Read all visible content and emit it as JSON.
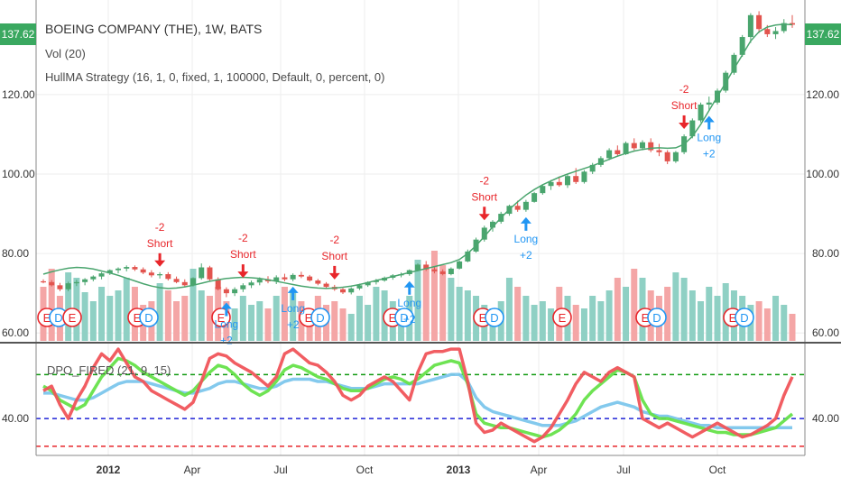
{
  "header": {
    "symbol_title": "BOEING COMPANY (THE), 1W, BATS",
    "volume_label": "Vol (20)",
    "strategy_label": "HullMA Strategy (16, 1, 0, fixed, 1, 100000, Default, 0, percent, 0)",
    "oscillator_label": "DPO_FIRED (21, 9, 15)"
  },
  "price_tag": "137.62",
  "colors": {
    "up": "#4aa56e",
    "down": "#e2544e",
    "hull": "#4aa56e",
    "vol_up": "#8fd0c4",
    "vol_down": "#f4a6a6",
    "short": "#e8262b",
    "long": "#2196f3",
    "osc_red": "#f0545a",
    "osc_green": "#66e24a",
    "osc_blue": "#7cc6ec",
    "level_green": "#119a11",
    "level_blue": "#1f23d6",
    "level_red": "#e8262b"
  },
  "chart_data": {
    "type": "candlestick",
    "price_axis": {
      "range": [
        58,
        142
      ],
      "ticks": [
        "60.00",
        "80.00",
        "100.00",
        "120.00"
      ]
    },
    "time_axis": {
      "labels": [
        "2012",
        "Apr",
        "Jul",
        "Oct",
        "2013",
        "Apr",
        "Jul",
        "Oct"
      ]
    },
    "candles": [
      [
        73,
        73.5,
        72.5,
        72.8
      ],
      [
        72.8,
        73.3,
        71.7,
        72
      ],
      [
        72,
        72.6,
        70.5,
        71
      ],
      [
        71,
        72.9,
        70.5,
        72.5
      ],
      [
        72.5,
        73.4,
        71.8,
        72.8
      ],
      [
        72.8,
        73.8,
        72,
        73.5
      ],
      [
        73.5,
        74.5,
        73,
        74.2
      ],
      [
        74.2,
        75.3,
        73.5,
        75
      ],
      [
        75,
        76,
        74.6,
        75.8
      ],
      [
        75.8,
        76.5,
        75,
        76.2
      ],
      [
        76.2,
        77,
        75.5,
        76.6
      ],
      [
        76.6,
        77,
        75.6,
        76
      ],
      [
        76,
        76.5,
        74.8,
        75.2
      ],
      [
        75.2,
        75.8,
        74,
        74.5
      ],
      [
        74.5,
        75.3,
        73.7,
        74.8
      ],
      [
        74.8,
        75.3,
        73.2,
        73.6
      ],
      [
        73.6,
        74.2,
        72.5,
        72.8
      ],
      [
        72.8,
        73.5,
        71.5,
        72
      ],
      [
        72,
        74,
        71.7,
        73.8
      ],
      [
        73.8,
        77.5,
        73.4,
        76.5
      ],
      [
        76.5,
        76.9,
        73,
        73.5
      ],
      [
        73.5,
        74,
        70.7,
        71
      ],
      [
        71,
        71.5,
        69,
        70
      ],
      [
        70,
        71.5,
        69.3,
        71
      ],
      [
        71,
        72.5,
        70.3,
        72
      ],
      [
        72,
        73.2,
        71.3,
        72.7
      ],
      [
        72.7,
        74,
        72,
        73.5
      ],
      [
        73.5,
        74.3,
        72.5,
        73
      ],
      [
        73,
        74.5,
        72.3,
        74
      ],
      [
        74,
        74.9,
        73,
        73.5
      ],
      [
        73.5,
        75,
        73,
        74.6
      ],
      [
        74.6,
        75.4,
        73.8,
        74.2
      ],
      [
        74.2,
        74.6,
        72.9,
        73.2
      ],
      [
        73.2,
        73.6,
        72,
        72.4
      ],
      [
        72.4,
        72.8,
        71.2,
        71.6
      ],
      [
        71.6,
        72.1,
        70.6,
        71
      ],
      [
        71,
        71.3,
        69.8,
        70.2
      ],
      [
        70.2,
        71.5,
        69.7,
        71.2
      ],
      [
        71.2,
        72.4,
        70.8,
        72
      ],
      [
        72,
        73,
        71.6,
        72.8
      ],
      [
        72.8,
        73.6,
        72.2,
        73.2
      ],
      [
        73.2,
        74.2,
        72.9,
        73.9
      ],
      [
        73.9,
        74.8,
        73.4,
        74.5
      ],
      [
        74.5,
        75.2,
        74,
        74.8
      ],
      [
        74.8,
        76,
        74.4,
        75.8
      ],
      [
        75.8,
        77.5,
        75.5,
        77.2
      ],
      [
        77.2,
        78.1,
        75.6,
        76
      ],
      [
        76,
        76.6,
        75,
        75.5
      ],
      [
        75.5,
        76,
        74.5,
        74.8
      ],
      [
        74.8,
        76.5,
        74.5,
        76.2
      ],
      [
        76.2,
        78.2,
        76,
        78
      ],
      [
        78,
        81,
        77.8,
        80.5
      ],
      [
        80.5,
        84,
        80.2,
        83.5
      ],
      [
        83.5,
        87,
        83,
        86.5
      ],
      [
        86.5,
        88.4,
        85.5,
        88
      ],
      [
        88,
        90.5,
        87.5,
        90
      ],
      [
        90,
        92.3,
        89.5,
        92
      ],
      [
        92,
        93.3,
        90.5,
        91
      ],
      [
        91,
        93.5,
        90.5,
        93
      ],
      [
        93,
        95.5,
        92.8,
        95.2
      ],
      [
        95.2,
        97.4,
        94.8,
        97
      ],
      [
        97,
        98.5,
        96,
        98
      ],
      [
        98,
        99.4,
        96.8,
        97.2
      ],
      [
        97.2,
        100,
        96.5,
        99.5
      ],
      [
        99.5,
        101.5,
        97.5,
        98
      ],
      [
        98,
        101,
        97.6,
        100.6
      ],
      [
        100.6,
        102.8,
        100,
        102.3
      ],
      [
        102.3,
        104.5,
        101.8,
        104
      ],
      [
        104,
        106.5,
        103.5,
        106
      ],
      [
        106,
        107.2,
        104.5,
        105
      ],
      [
        105,
        108.2,
        104.8,
        107.8
      ],
      [
        107.8,
        109,
        106,
        106.5
      ],
      [
        106.5,
        108.5,
        106,
        108
      ],
      [
        108,
        109,
        105.5,
        106
      ],
      [
        106,
        107.6,
        104.5,
        105.5
      ],
      [
        105.5,
        106,
        102.5,
        103.2
      ],
      [
        103.2,
        105.8,
        102.8,
        105.5
      ],
      [
        105.5,
        110,
        105,
        109.5
      ],
      [
        109.5,
        114,
        109,
        113.5
      ],
      [
        113.5,
        118,
        113,
        117.5
      ],
      [
        117.5,
        119.5,
        116,
        118
      ],
      [
        118,
        121.5,
        117.5,
        121
      ],
      [
        121,
        126,
        120.5,
        125.5
      ],
      [
        125.5,
        130.5,
        125,
        130
      ],
      [
        130,
        135,
        129.5,
        134.5
      ],
      [
        134.5,
        140.5,
        133,
        140
      ],
      [
        140,
        141,
        135.5,
        136.5
      ],
      [
        136.5,
        137.5,
        134.5,
        135.2
      ],
      [
        135.2,
        137,
        134,
        136
      ],
      [
        136,
        139,
        135.5,
        138
      ],
      [
        138,
        140,
        136.8,
        137.6
      ]
    ],
    "volume": [
      30,
      40,
      25,
      38,
      35,
      27,
      22,
      30,
      25,
      28,
      35,
      30,
      20,
      22,
      32,
      28,
      22,
      25,
      40,
      28,
      25,
      30,
      22,
      18,
      25,
      20,
      22,
      18,
      25,
      30,
      28,
      22,
      18,
      25,
      20,
      22,
      18,
      15,
      25,
      20,
      30,
      28,
      22,
      18,
      25,
      45,
      40,
      50,
      42,
      35,
      30,
      28,
      25,
      20,
      18,
      22,
      35,
      30,
      25,
      20,
      22,
      18,
      30,
      25,
      20,
      18,
      25,
      22,
      28,
      35,
      30,
      40,
      35,
      28,
      25,
      30,
      38,
      35,
      28,
      22,
      30,
      25,
      32,
      28,
      25,
      20,
      22,
      18,
      25,
      20,
      15
    ],
    "hull_ma": [
      74.8,
      75.4,
      75.9,
      76.3,
      76.5,
      76.4,
      76.1,
      75.6,
      75.1,
      74.5,
      73.8,
      73.1,
      72.4,
      71.8,
      71.4,
      71.2,
      71.3,
      71.6,
      72,
      72.5,
      73,
      73.4,
      73.7,
      73.9,
      74,
      73.9,
      73.7,
      73.4,
      73,
      72.6,
      72.2,
      71.8,
      71.5,
      71.3,
      71.2,
      71.3,
      71.5,
      71.8,
      72.2,
      72.7,
      73.2,
      73.7,
      74.2,
      74.7,
      75.2,
      75.7,
      76.2,
      76.7,
      77.2,
      77.7,
      78.5,
      80,
      82,
      84.3,
      86.7,
      89,
      91.1,
      93,
      94.7,
      96.1,
      97.3,
      98.3,
      99.2,
      100,
      100.7,
      101.4,
      102.1,
      102.9,
      103.7,
      104.5,
      105.2,
      105.8,
      106.2,
      106.5,
      106.6,
      106.5,
      106.6,
      107.5,
      109.5,
      112.5,
      116,
      119.5,
      123,
      126.5,
      130,
      133.5,
      135.8,
      137,
      137.5,
      137.7,
      137.6
    ],
    "signals": [
      {
        "type": "short",
        "qty": "-2",
        "label": "Short",
        "index": 14
      },
      {
        "type": "short",
        "qty": "-2",
        "label": "Short",
        "index": 24
      },
      {
        "type": "short",
        "qty": "-2",
        "label": "Short",
        "index": 35
      },
      {
        "type": "short",
        "qty": "-2",
        "label": "Short",
        "index": 53
      },
      {
        "type": "short",
        "qty": "-2",
        "label": "Short",
        "index": 77
      },
      {
        "type": "long",
        "qty": "+2",
        "label": "Long",
        "index": 80
      },
      {
        "type": "long",
        "qty": "+2",
        "label": "Long",
        "index": 22
      },
      {
        "type": "long",
        "qty": "+2",
        "label": "Long",
        "index": 30
      },
      {
        "type": "long",
        "qty": "+2",
        "label": "Long",
        "index": 44
      },
      {
        "type": "long",
        "qty": "+2",
        "label": "Long",
        "index": 58
      }
    ],
    "events": [
      {
        "x": 52,
        "letters": [
          "E",
          "D"
        ]
      },
      {
        "x": 80,
        "letters": [
          "E"
        ]
      },
      {
        "x": 152,
        "letters": [
          "E",
          "D"
        ]
      },
      {
        "x": 245,
        "letters": [
          "E"
        ]
      },
      {
        "x": 342,
        "letters": [
          "E",
          "D"
        ]
      },
      {
        "x": 435,
        "letters": [
          "E",
          "D"
        ]
      },
      {
        "x": 535,
        "letters": [
          "E",
          "D"
        ]
      },
      {
        "x": 623,
        "letters": [
          "E"
        ]
      },
      {
        "x": 715,
        "letters": [
          "E",
          "D"
        ]
      },
      {
        "x": 812,
        "letters": [
          "E",
          "D"
        ]
      }
    ],
    "oscillator": {
      "range": [
        26,
        72
      ],
      "levels": {
        "upper": 59,
        "middle": 40,
        "lower": 28
      },
      "tick": "40.00",
      "red": [
        52,
        54,
        46,
        40,
        48,
        54,
        62,
        68,
        65,
        70,
        64,
        58,
        56,
        52,
        50,
        48,
        46,
        44,
        47,
        56,
        66,
        68,
        67,
        64,
        62,
        60,
        57,
        54,
        58,
        68,
        70,
        67,
        64,
        63,
        60,
        56,
        50,
        48,
        50,
        54,
        56,
        58,
        56,
        52,
        48,
        60,
        68,
        69,
        69,
        70,
        70,
        56,
        38,
        34,
        35,
        38,
        36,
        34,
        32,
        30,
        32,
        36,
        42,
        48,
        55,
        60,
        58,
        56,
        60,
        62,
        60,
        58,
        40,
        38,
        36,
        38,
        36,
        34,
        32,
        34,
        36,
        38,
        36,
        34,
        32,
        33,
        35,
        37,
        40,
        50,
        58
      ],
      "green": [
        54,
        52,
        48,
        46,
        44,
        46,
        52,
        58,
        62,
        66,
        65,
        63,
        60,
        58,
        56,
        54,
        52,
        50,
        52,
        56,
        60,
        63,
        62,
        59,
        55,
        52,
        50,
        52,
        56,
        61,
        63,
        62,
        60,
        58,
        57,
        55,
        53,
        52,
        52,
        53,
        55,
        57,
        58,
        57,
        55,
        57,
        60,
        63,
        64,
        65,
        64,
        55,
        42,
        38,
        37,
        36,
        36,
        35,
        34,
        33,
        32,
        33,
        35,
        38,
        42,
        48,
        52,
        55,
        58,
        61,
        60,
        58,
        48,
        42,
        40,
        40,
        39,
        38,
        37,
        36,
        35,
        34,
        34,
        33,
        33,
        33,
        34,
        35,
        36,
        39,
        42
      ],
      "blue": [
        51,
        51,
        50,
        49,
        48,
        48,
        49,
        51,
        53,
        55,
        56,
        56,
        56,
        55,
        54,
        53,
        52,
        51,
        51,
        52,
        53,
        55,
        56,
        56,
        55,
        54,
        53,
        53,
        54,
        56,
        57,
        57,
        57,
        56,
        56,
        55,
        54,
        53,
        53,
        53,
        54,
        55,
        55,
        55,
        55,
        55,
        56,
        57,
        58,
        59,
        59,
        56,
        49,
        45,
        43,
        42,
        41,
        40,
        39,
        38,
        37,
        37,
        37,
        38,
        39,
        41,
        43,
        45,
        46,
        47,
        46,
        45,
        43,
        42,
        41,
        41,
        40,
        39,
        38,
        37,
        37,
        36,
        36,
        36,
        36,
        36,
        36,
        36,
        36,
        36,
        36
      ]
    }
  }
}
